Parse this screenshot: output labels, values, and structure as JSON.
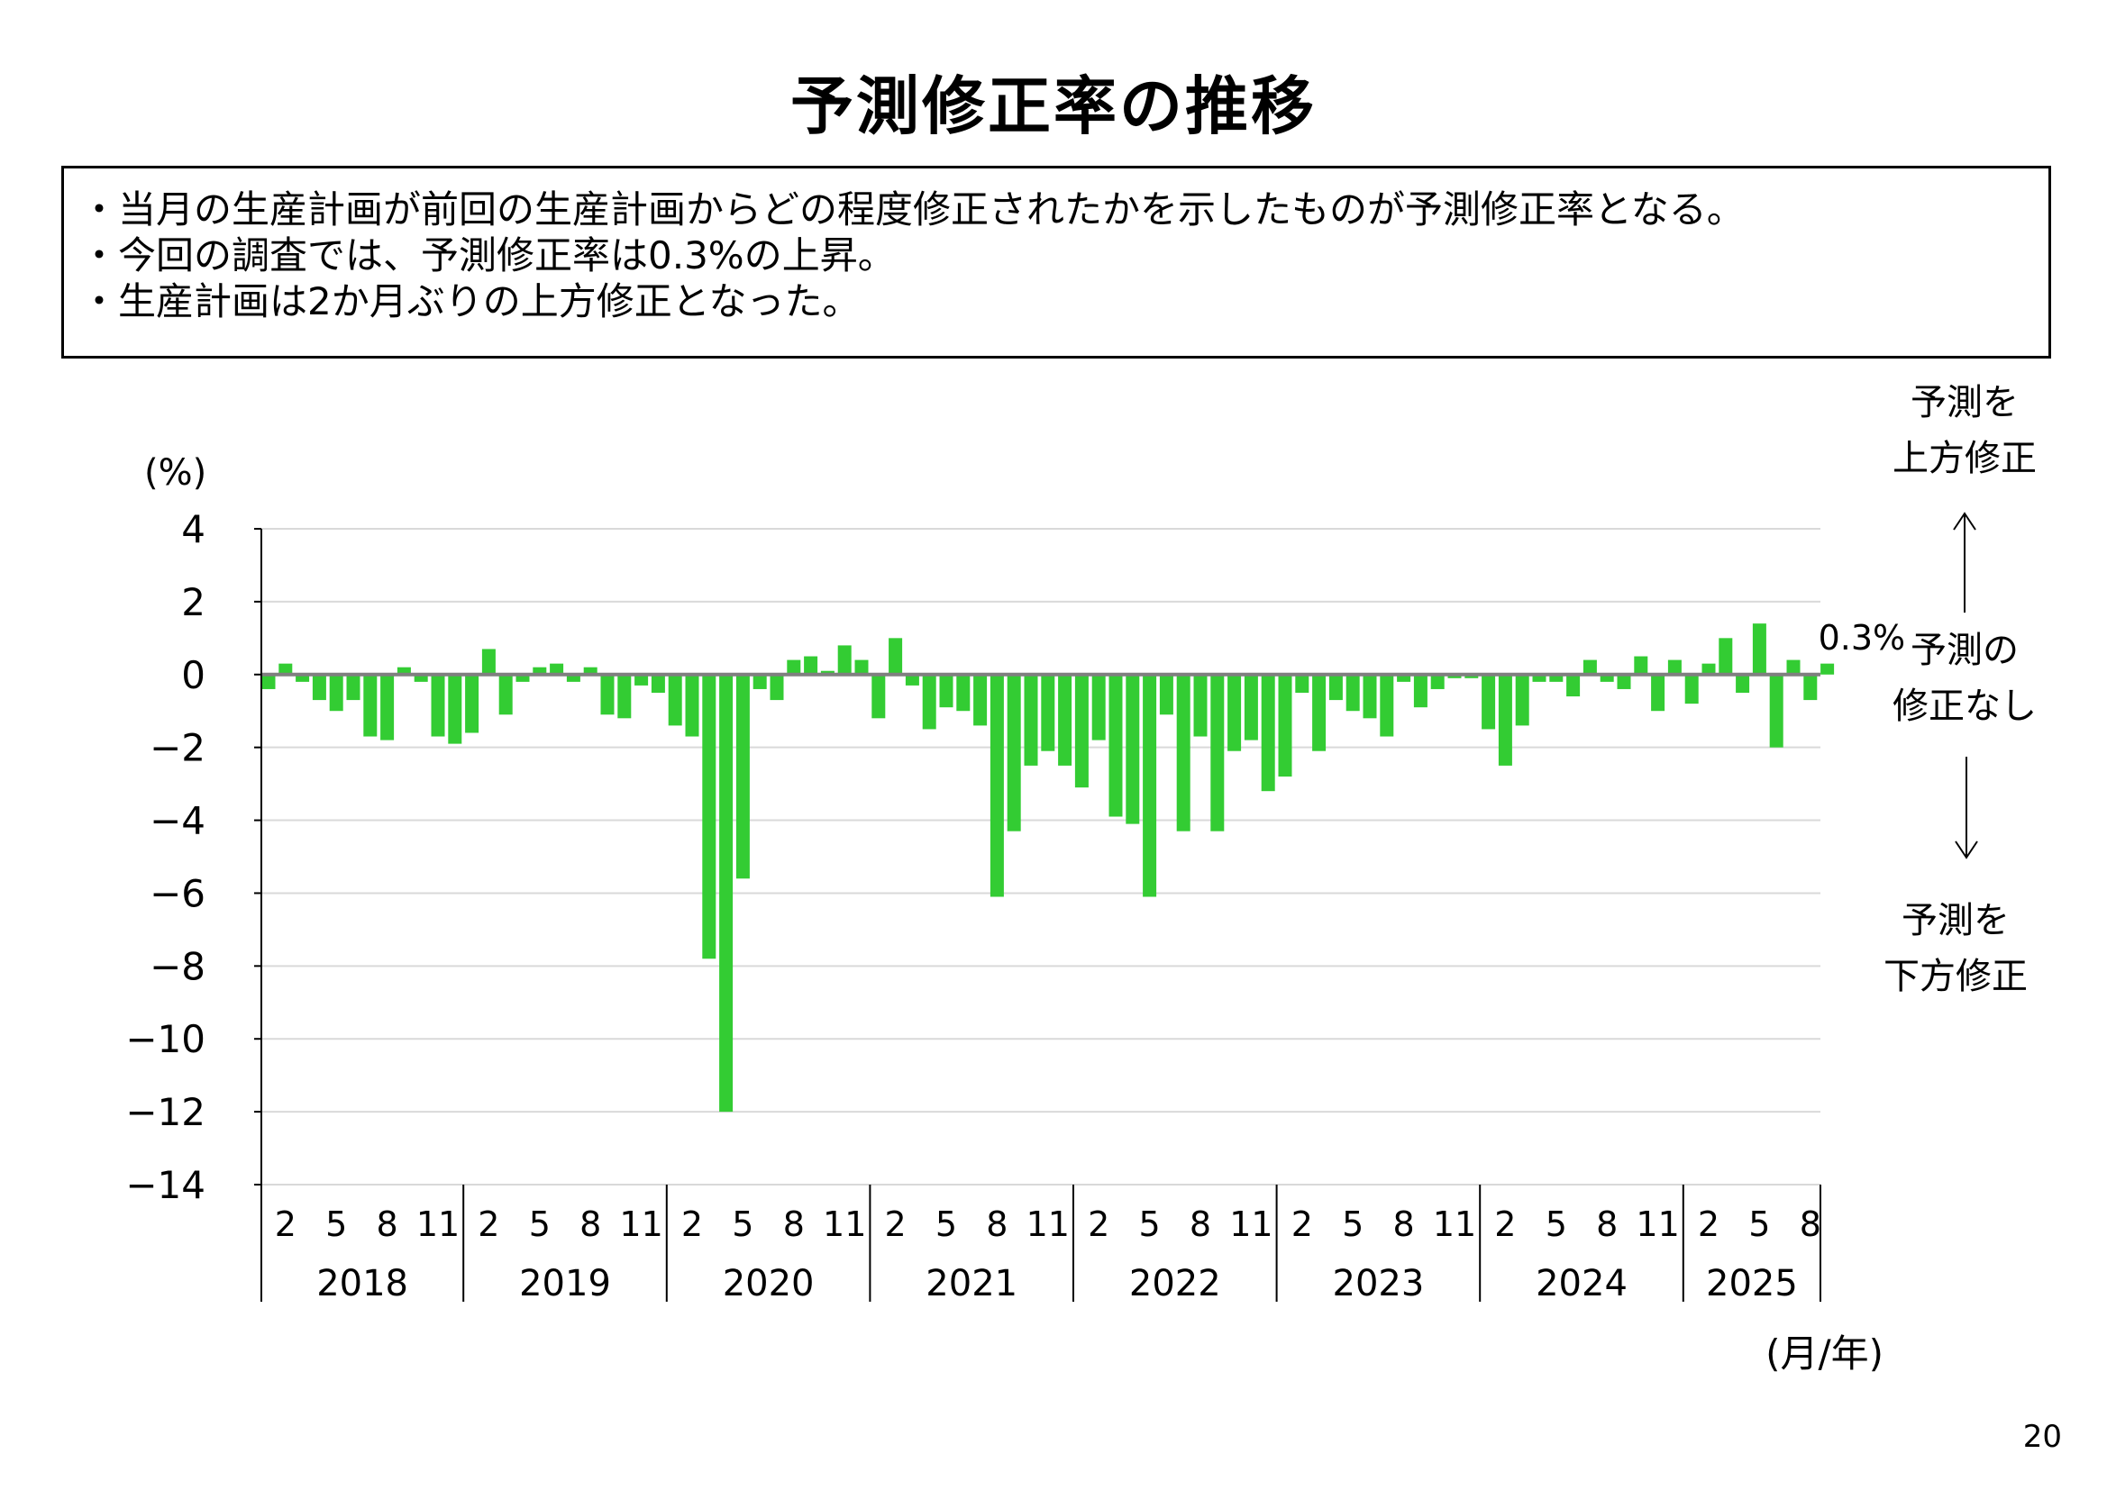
{
  "title": "予測修正率の推移",
  "summary": [
    "・当月の生産計画が前回の生産計画からどの程度修正されたかを示したものが予測修正率となる。",
    "・今回の調査では、予測修正率は0.3%の上昇。",
    "・生産計画は2か月ぶりの上方修正となった。"
  ],
  "page_number": "20",
  "chart_data": {
    "type": "bar",
    "ylabel": "(%)",
    "xlabel": "(月/年)",
    "ylim": [
      -14,
      4
    ],
    "yticks": [
      4,
      2,
      0,
      -2,
      -4,
      -6,
      -8,
      -10,
      -12,
      -14
    ],
    "grid": true,
    "bar_color": "#33cc33",
    "month_tick_labels": [
      "2",
      "5",
      "8",
      "11"
    ],
    "years": [
      {
        "label": "2018",
        "values": [
          -0.4,
          0.3,
          -0.2,
          -0.7,
          -1.0,
          -0.7,
          -1.7,
          -1.8,
          0.2,
          -0.2,
          -1.7,
          -1.9
        ]
      },
      {
        "label": "2019",
        "values": [
          -1.6,
          0.7,
          -1.1,
          -0.2,
          0.2,
          0.3,
          -0.2,
          0.2,
          -1.1,
          -1.2,
          -0.3,
          -0.5
        ]
      },
      {
        "label": "2020",
        "values": [
          -1.4,
          -1.7,
          -7.8,
          -12.0,
          -5.6,
          -0.4,
          -0.7,
          0.4,
          0.5,
          0.1,
          0.8,
          0.4
        ]
      },
      {
        "label": "2021",
        "values": [
          -1.2,
          1.0,
          -0.3,
          -1.5,
          -0.9,
          -1.0,
          -1.4,
          -6.1,
          -4.3,
          -2.5,
          -2.1,
          -2.5
        ]
      },
      {
        "label": "2022",
        "values": [
          -3.1,
          -1.8,
          -3.9,
          -4.1,
          -6.1,
          -1.1,
          -4.3,
          -1.7,
          -4.3,
          -2.1,
          -1.8,
          -3.2
        ]
      },
      {
        "label": "2023",
        "values": [
          -2.8,
          -0.5,
          -2.1,
          -0.7,
          -1.0,
          -1.2,
          -1.7,
          -0.2,
          -0.9,
          -0.4,
          -0.1,
          -0.1
        ]
      },
      {
        "label": "2024",
        "values": [
          -1.5,
          -2.5,
          -1.4,
          -0.2,
          -0.2,
          -0.6,
          0.4,
          -0.2,
          -0.4,
          0.5,
          -1.0,
          0.4
        ]
      },
      {
        "label": "2025",
        "values": [
          -0.8,
          0.3,
          1.0,
          -0.5,
          1.4,
          -2.0,
          0.4,
          -0.7,
          0.3
        ]
      }
    ],
    "annotations": {
      "latest_label": "0.3%",
      "upward_label": [
        "予測を",
        "上方修正"
      ],
      "neutral_label": [
        "予測の",
        "修正なし"
      ],
      "downward_label": [
        "予測を",
        "下方修正"
      ]
    }
  }
}
